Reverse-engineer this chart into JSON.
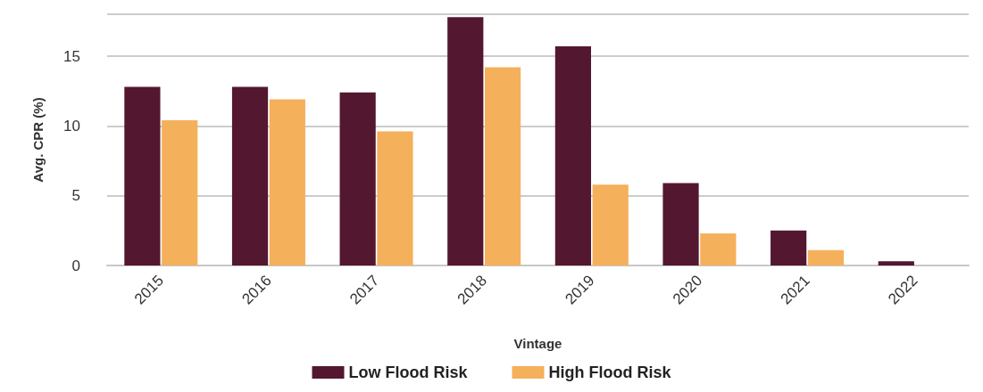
{
  "chart_data": {
    "type": "bar",
    "xlabel": "Vintage",
    "ylabel": "Avg. CPR (%)",
    "categories": [
      "2015",
      "2016",
      "2017",
      "2018",
      "2019",
      "2020",
      "2021",
      "2022"
    ],
    "series": [
      {
        "name": "Low Flood Risk",
        "color": "#531730",
        "values": [
          12.8,
          12.8,
          12.4,
          17.8,
          15.7,
          5.9,
          2.5,
          0.3
        ]
      },
      {
        "name": "High Flood Risk",
        "color": "#f5b05c",
        "values": [
          10.4,
          11.9,
          9.6,
          14.2,
          5.8,
          2.3,
          1.1,
          null
        ]
      }
    ],
    "ylim": [
      0,
      18
    ],
    "yticks": [
      0,
      5,
      10,
      15
    ],
    "grid": "y",
    "legend": "bottom"
  }
}
